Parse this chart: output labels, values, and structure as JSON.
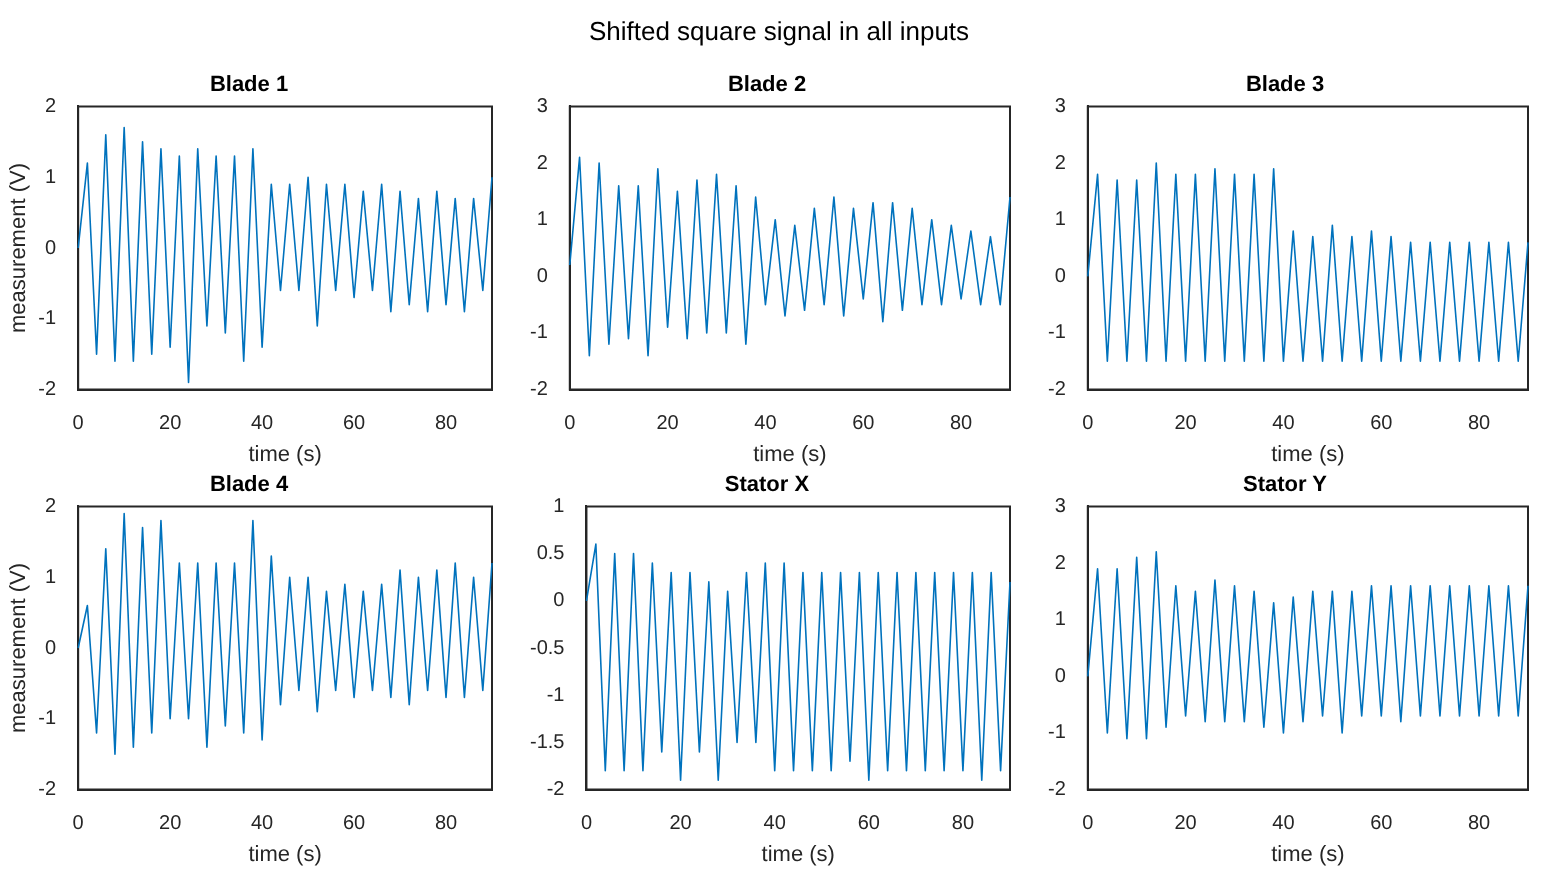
{
  "chart_data": [
    {
      "type": "line",
      "title": "Blade 1",
      "xlabel": "time (s)",
      "ylabel": "measurement (V)",
      "annotations": [
        "Shifted square signal in all inputs"
      ],
      "xlim": [
        0,
        90
      ],
      "xticks": [
        0,
        20,
        40,
        60,
        80
      ],
      "ylim": [
        -2,
        2
      ],
      "yticks": [
        -2,
        -1,
        0,
        1,
        2
      ],
      "grid": false,
      "legend": false,
      "marker": "none",
      "x": [
        0,
        2,
        4,
        6,
        8,
        10,
        12,
        14,
        16,
        18,
        20,
        22,
        24,
        26,
        28,
        30,
        32,
        34,
        36,
        38,
        40,
        42,
        44,
        46,
        48,
        50,
        52,
        54,
        56,
        58,
        60,
        62,
        64,
        66,
        68,
        70,
        72,
        74,
        76,
        78,
        80,
        82,
        84,
        86,
        88,
        90
      ],
      "series": [
        {
          "color": "#0072bd",
          "values": [
            0,
            1.2,
            -1.5,
            1.6,
            -1.6,
            1.7,
            -1.6,
            1.5,
            -1.5,
            1.4,
            -1.4,
            1.3,
            -1.9,
            1.4,
            -1.1,
            1.3,
            -1.2,
            1.3,
            -1.6,
            1.4,
            -1.4,
            0.9,
            -0.6,
            0.9,
            -0.6,
            1.0,
            -1.1,
            0.9,
            -0.6,
            0.9,
            -0.7,
            0.8,
            -0.6,
            0.9,
            -0.9,
            0.8,
            -0.8,
            0.7,
            -0.9,
            0.8,
            -0.8,
            0.7,
            -0.9,
            0.7,
            -0.6,
            1.0
          ]
        }
      ]
    },
    {
      "type": "line",
      "title": "Blade 2",
      "xlabel": "time (s)",
      "xlim": [
        0,
        90
      ],
      "xticks": [
        0,
        20,
        40,
        60,
        80
      ],
      "ylim": [
        -2,
        3
      ],
      "yticks": [
        -2,
        -1,
        0,
        1,
        2,
        3
      ],
      "grid": false,
      "legend": false,
      "marker": "none",
      "x": [
        0,
        2,
        4,
        6,
        8,
        10,
        12,
        14,
        16,
        18,
        20,
        22,
        24,
        26,
        28,
        30,
        32,
        34,
        36,
        38,
        40,
        42,
        44,
        46,
        48,
        50,
        52,
        54,
        56,
        58,
        60,
        62,
        64,
        66,
        68,
        70,
        72,
        74,
        76,
        78,
        80,
        82,
        84,
        86,
        88,
        90
      ],
      "series": [
        {
          "color": "#0072bd",
          "values": [
            0.2,
            2.1,
            -1.4,
            2.0,
            -1.2,
            1.6,
            -1.1,
            1.6,
            -1.4,
            1.9,
            -0.9,
            1.5,
            -1.1,
            1.7,
            -1.0,
            1.8,
            -1.0,
            1.6,
            -1.2,
            1.4,
            -0.5,
            1.0,
            -0.7,
            0.9,
            -0.6,
            1.2,
            -0.5,
            1.4,
            -0.7,
            1.2,
            -0.4,
            1.3,
            -0.8,
            1.3,
            -0.6,
            1.2,
            -0.5,
            1.0,
            -0.5,
            0.9,
            -0.4,
            0.8,
            -0.5,
            0.7,
            -0.5,
            1.4
          ]
        }
      ]
    },
    {
      "type": "line",
      "title": "Blade 3",
      "xlabel": "time (s)",
      "xlim": [
        0,
        90
      ],
      "xticks": [
        0,
        20,
        40,
        60,
        80
      ],
      "ylim": [
        -2,
        3
      ],
      "yticks": [
        -2,
        -1,
        0,
        1,
        2,
        3
      ],
      "grid": false,
      "legend": false,
      "marker": "none",
      "x": [
        0,
        2,
        4,
        6,
        8,
        10,
        12,
        14,
        16,
        18,
        20,
        22,
        24,
        26,
        28,
        30,
        32,
        34,
        36,
        38,
        40,
        42,
        44,
        46,
        48,
        50,
        52,
        54,
        56,
        58,
        60,
        62,
        64,
        66,
        68,
        70,
        72,
        74,
        76,
        78,
        80,
        82,
        84,
        86,
        88,
        90
      ],
      "series": [
        {
          "color": "#0072bd",
          "values": [
            0,
            1.8,
            -1.5,
            1.7,
            -1.5,
            1.7,
            -1.5,
            2.0,
            -1.5,
            1.8,
            -1.5,
            1.8,
            -1.5,
            1.9,
            -1.5,
            1.8,
            -1.5,
            1.8,
            -1.5,
            1.9,
            -1.5,
            0.8,
            -1.5,
            0.7,
            -1.5,
            0.9,
            -1.5,
            0.7,
            -1.5,
            0.8,
            -1.5,
            0.7,
            -1.5,
            0.6,
            -1.5,
            0.6,
            -1.5,
            0.6,
            -1.5,
            0.6,
            -1.5,
            0.6,
            -1.5,
            0.6,
            -1.5,
            0.6
          ]
        }
      ]
    },
    {
      "type": "line",
      "title": "Blade 4",
      "xlabel": "time (s)",
      "ylabel": "measurement (V)",
      "xlim": [
        0,
        90
      ],
      "xticks": [
        0,
        20,
        40,
        60,
        80
      ],
      "ylim": [
        -2,
        2
      ],
      "yticks": [
        -2,
        -1,
        0,
        1,
        2
      ],
      "grid": false,
      "legend": false,
      "marker": "none",
      "x": [
        0,
        2,
        4,
        6,
        8,
        10,
        12,
        14,
        16,
        18,
        20,
        22,
        24,
        26,
        28,
        30,
        32,
        34,
        36,
        38,
        40,
        42,
        44,
        46,
        48,
        50,
        52,
        54,
        56,
        58,
        60,
        62,
        64,
        66,
        68,
        70,
        72,
        74,
        76,
        78,
        80,
        82,
        84,
        86,
        88,
        90
      ],
      "series": [
        {
          "color": "#0072bd",
          "values": [
            0,
            0.6,
            -1.2,
            1.4,
            -1.5,
            1.9,
            -1.4,
            1.7,
            -1.2,
            1.8,
            -1.0,
            1.2,
            -1.0,
            1.2,
            -1.4,
            1.2,
            -1.1,
            1.2,
            -1.2,
            1.8,
            -1.3,
            1.3,
            -0.8,
            1.0,
            -0.6,
            1.0,
            -0.9,
            0.8,
            -0.6,
            0.9,
            -0.7,
            0.8,
            -0.6,
            0.9,
            -0.7,
            1.1,
            -0.8,
            1.0,
            -0.6,
            1.1,
            -0.7,
            1.2,
            -0.7,
            1.0,
            -0.6,
            1.2
          ]
        }
      ]
    },
    {
      "type": "line",
      "title": "Stator X",
      "xlabel": "time (s)",
      "xlim": [
        0,
        90
      ],
      "xticks": [
        0,
        20,
        40,
        60,
        80
      ],
      "ylim": [
        -2,
        1
      ],
      "yticks": [
        -2,
        -1.5,
        -1,
        -0.5,
        0,
        0.5,
        1
      ],
      "grid": false,
      "legend": false,
      "marker": "none",
      "x": [
        0,
        2,
        4,
        6,
        8,
        10,
        12,
        14,
        16,
        18,
        20,
        22,
        24,
        26,
        28,
        30,
        32,
        34,
        36,
        38,
        40,
        42,
        44,
        46,
        48,
        50,
        52,
        54,
        56,
        58,
        60,
        62,
        64,
        66,
        68,
        70,
        72,
        74,
        76,
        78,
        80,
        82,
        84,
        86,
        88,
        90
      ],
      "series": [
        {
          "color": "#0072bd",
          "values": [
            0.0,
            0.6,
            -1.8,
            0.5,
            -1.8,
            0.5,
            -1.8,
            0.4,
            -1.6,
            0.3,
            -1.9,
            0.3,
            -1.6,
            0.2,
            -1.9,
            0.1,
            -1.5,
            0.3,
            -1.5,
            0.4,
            -1.8,
            0.4,
            -1.8,
            0.3,
            -1.8,
            0.3,
            -1.8,
            0.3,
            -1.7,
            0.3,
            -1.9,
            0.3,
            -1.8,
            0.3,
            -1.8,
            0.3,
            -1.8,
            0.3,
            -1.8,
            0.3,
            -1.8,
            0.3,
            -1.9,
            0.3,
            -1.8,
            0.2
          ]
        }
      ]
    },
    {
      "type": "line",
      "title": "Stator Y",
      "xlabel": "time (s)",
      "xlim": [
        0,
        90
      ],
      "xticks": [
        0,
        20,
        40,
        60,
        80
      ],
      "ylim": [
        -2,
        3
      ],
      "yticks": [
        -2,
        -1,
        0,
        1,
        2,
        3
      ],
      "grid": false,
      "legend": false,
      "marker": "none",
      "x": [
        0,
        2,
        4,
        6,
        8,
        10,
        12,
        14,
        16,
        18,
        20,
        22,
        24,
        26,
        28,
        30,
        32,
        34,
        36,
        38,
        40,
        42,
        44,
        46,
        48,
        50,
        52,
        54,
        56,
        58,
        60,
        62,
        64,
        66,
        68,
        70,
        72,
        74,
        76,
        78,
        80,
        82,
        84,
        86,
        88,
        90
      ],
      "series": [
        {
          "color": "#0072bd",
          "values": [
            0,
            1.9,
            -1.0,
            1.9,
            -1.1,
            2.1,
            -1.1,
            2.2,
            -0.9,
            1.6,
            -0.7,
            1.5,
            -0.8,
            1.7,
            -0.8,
            1.6,
            -0.8,
            1.5,
            -0.9,
            1.3,
            -1.0,
            1.4,
            -0.8,
            1.5,
            -0.7,
            1.5,
            -1.0,
            1.5,
            -0.7,
            1.6,
            -0.7,
            1.6,
            -0.8,
            1.6,
            -0.7,
            1.6,
            -0.7,
            1.6,
            -0.7,
            1.6,
            -0.7,
            1.6,
            -0.7,
            1.6,
            -0.7,
            1.6
          ]
        }
      ]
    }
  ]
}
